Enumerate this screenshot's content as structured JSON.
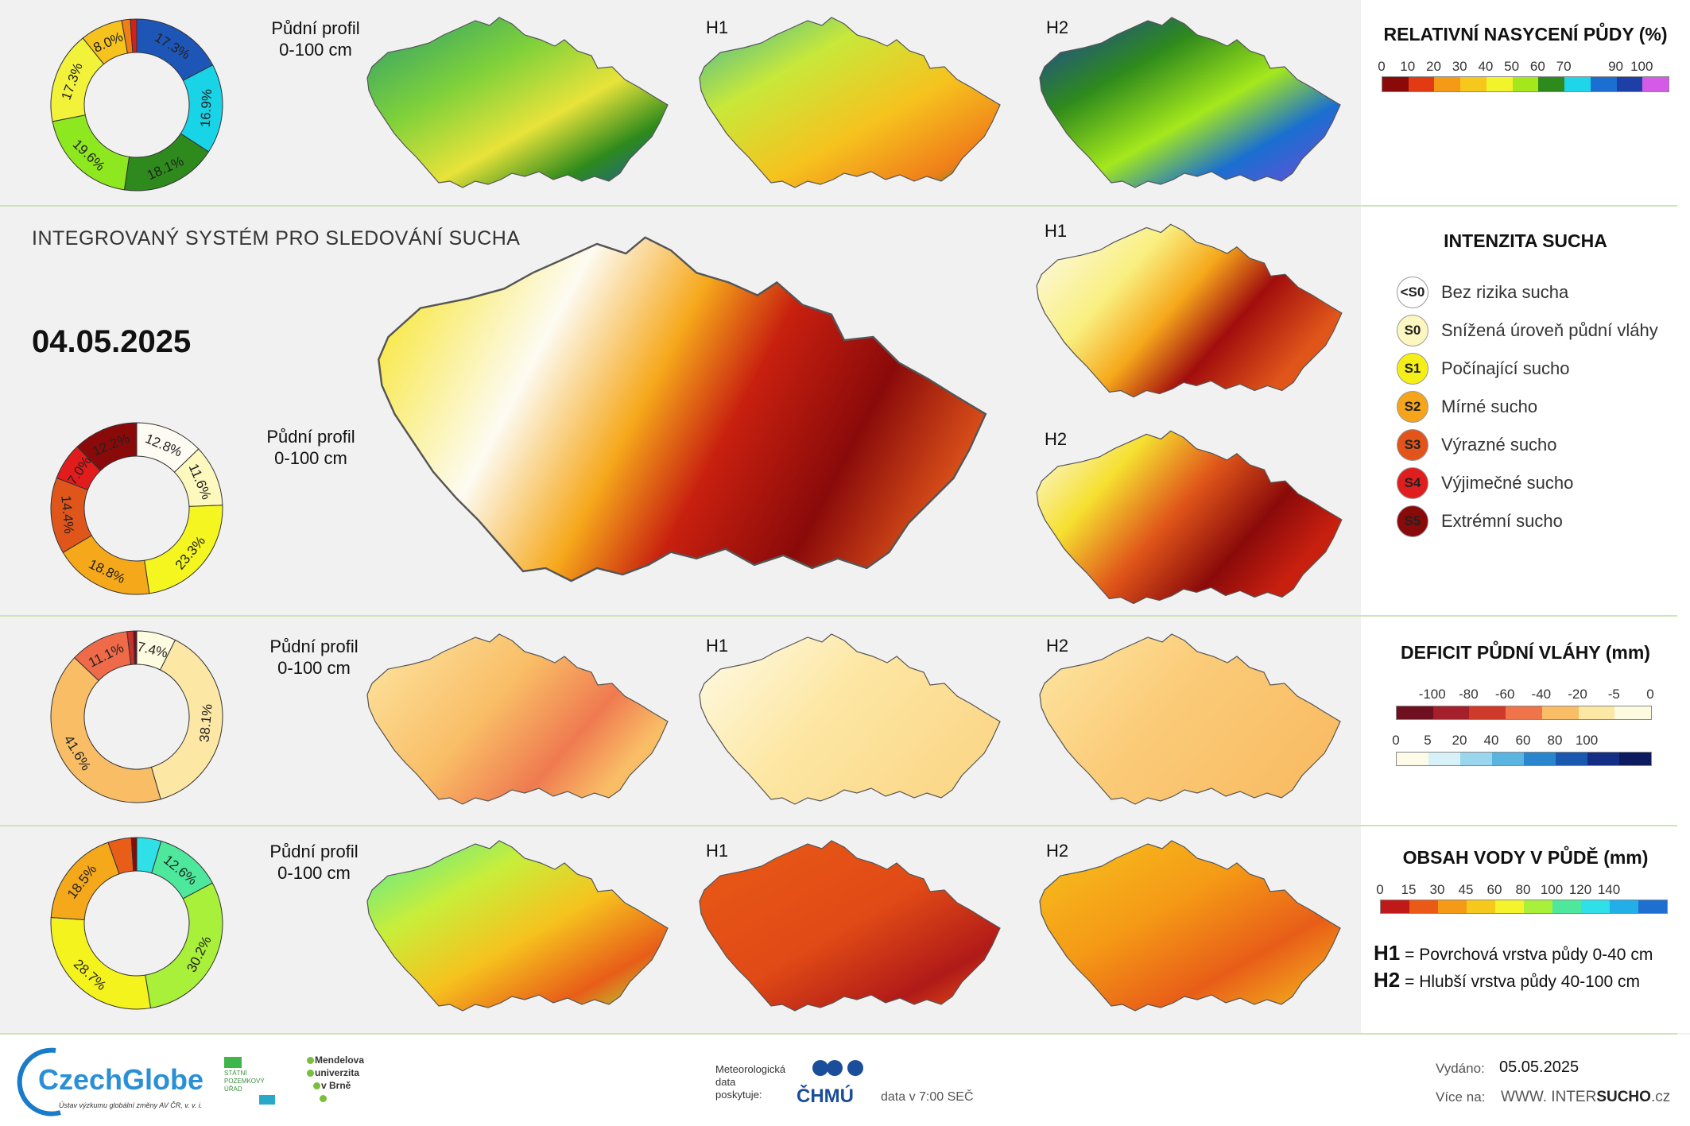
{
  "header": {
    "system_title": "INTEGROVANÝ SYSTÉM PRO SLEDOVÁNÍ SUCHA",
    "date": "04.05.2025"
  },
  "rows": {
    "saturation": {
      "profile_label_line1": "Půdní profil",
      "profile_label_line2": "0-100 cm",
      "h1_label": "H1",
      "h2_label": "H2",
      "donut": [
        {
          "label": "17.3%",
          "value": 17.3,
          "color": "#1e56b8"
        },
        {
          "label": "16.9%",
          "value": 16.9,
          "color": "#19d3e6"
        },
        {
          "label": "18.1%",
          "value": 18.1,
          "color": "#2e8a1c"
        },
        {
          "label": "19.6%",
          "value": 19.6,
          "color": "#8ee81f"
        },
        {
          "label": "17.3%",
          "value": 17.3,
          "color": "#f2f23a"
        },
        {
          "label": "8.0%",
          "value": 8.0,
          "color": "#f6c21e"
        },
        {
          "label": "",
          "value": 1.6,
          "color": "#f07f1a"
        },
        {
          "label": "",
          "value": 1.2,
          "color": "#d41f1f"
        }
      ]
    },
    "drought": {
      "profile_label_line1": "Půdní profil",
      "profile_label_line2": "0-100 cm",
      "h1_label": "H1",
      "h2_label": "H2",
      "donut": [
        {
          "label": "12.8%",
          "value": 12.8,
          "color": "#fdfbf2"
        },
        {
          "label": "11.6%",
          "value": 11.6,
          "color": "#fdf8bd"
        },
        {
          "label": "23.3%",
          "value": 23.3,
          "color": "#f5f520"
        },
        {
          "label": "18.8%",
          "value": 18.8,
          "color": "#f6a81b"
        },
        {
          "label": "14.4%",
          "value": 14.4,
          "color": "#e0561a"
        },
        {
          "label": "7.0%",
          "value": 7.0,
          "color": "#e21c1c"
        },
        {
          "label": "12.2%",
          "value": 12.2,
          "color": "#8a0a0a"
        }
      ]
    },
    "deficit": {
      "profile_label_line1": "Půdní profil",
      "profile_label_line2": "0-100 cm",
      "h1_label": "H1",
      "h2_label": "H2",
      "donut": [
        {
          "label": "7.4%",
          "value": 7.4,
          "color": "#fdfbe0"
        },
        {
          "label": "38.1%",
          "value": 38.1,
          "color": "#fde7a4"
        },
        {
          "label": "41.6%",
          "value": 41.6,
          "color": "#f9bd66"
        },
        {
          "label": "11.1%",
          "value": 11.1,
          "color": "#ef6a48"
        },
        {
          "label": "",
          "value": 1.2,
          "color": "#c9302a"
        },
        {
          "label": "",
          "value": 0.6,
          "color": "#6e1020"
        }
      ]
    },
    "water": {
      "profile_label_line1": "Půdní profil",
      "profile_label_line2": "0-100 cm",
      "h1_label": "H1",
      "h2_label": "H2",
      "donut": [
        {
          "label": "",
          "value": 4.6,
          "color": "#2fe0e8"
        },
        {
          "label": "12.6%",
          "value": 12.6,
          "color": "#4ee89c"
        },
        {
          "label": "30.2%",
          "value": 30.2,
          "color": "#a8f03a"
        },
        {
          "label": "28.7%",
          "value": 28.7,
          "color": "#f4f31e"
        },
        {
          "label": "18.5%",
          "value": 18.5,
          "color": "#f6a81b"
        },
        {
          "label": "",
          "value": 4.4,
          "color": "#e85d18"
        },
        {
          "label": "",
          "value": 1.0,
          "color": "#8a0a0a"
        }
      ]
    }
  },
  "legends": {
    "saturation": {
      "title": "RELATIVNÍ NASYCENÍ PŮDY (%)",
      "ticks": [
        "0",
        "10",
        "20",
        "30",
        "40",
        "50",
        "60",
        "70",
        "90",
        "100"
      ],
      "colors": [
        "#8a0a0a",
        "#e23b14",
        "#f59a16",
        "#f7c81c",
        "#f3f32c",
        "#a4e81c",
        "#2e8a1c",
        "#1fd5ea",
        "#1a6fd0",
        "#1e3fa8",
        "#d45ae8"
      ]
    },
    "drought": {
      "title": "INTENZITA SUCHA",
      "items": [
        {
          "code": "<S0",
          "label": "Bez rizika sucha",
          "color": "#ffffff",
          "text_color": "#222"
        },
        {
          "code": "S0",
          "label": "Snížená úroveň půdní vláhy",
          "color": "#fdf6c0",
          "text_color": "#222"
        },
        {
          "code": "S1",
          "label": "Počínající sucho",
          "color": "#f5ef18",
          "text_color": "#222"
        },
        {
          "code": "S2",
          "label": "Mírné sucho",
          "color": "#f6a51b",
          "text_color": "#222"
        },
        {
          "code": "S3",
          "label": "Výrazné sucho",
          "color": "#e2541a",
          "text_color": "#222"
        },
        {
          "code": "S4",
          "label": "Výjimečné sucho",
          "color": "#e01e1e",
          "text_color": "#222"
        },
        {
          "code": "S5",
          "label": "Extrémní sucho",
          "color": "#8a0a0a",
          "text_color": "#222"
        }
      ]
    },
    "deficit": {
      "title": "DEFICIT PŮDNÍ VLÁHY (mm)",
      "neg_ticks": [
        "-100",
        "-80",
        "-60",
        "-40",
        "-20",
        "-5",
        "0"
      ],
      "neg_colors": [
        "#6e1020",
        "#a4202a",
        "#d03a2a",
        "#f0744a",
        "#f9bd66",
        "#fde7a4",
        "#fdfbe0"
      ],
      "pos_ticks": [
        "0",
        "5",
        "20",
        "40",
        "60",
        "80",
        "100"
      ],
      "pos_colors": [
        "#fdfbe8",
        "#d8f0f8",
        "#9ad6ee",
        "#5ab4e0",
        "#2a86cc",
        "#1a58b0",
        "#142e86",
        "#0c1a5e"
      ]
    },
    "water": {
      "title": "OBSAH VODY V PŮDĚ (mm)",
      "ticks": [
        "0",
        "15",
        "30",
        "45",
        "60",
        "80",
        "100",
        "120",
        "140"
      ],
      "colors": [
        "#c01a18",
        "#ea5a16",
        "#f59a16",
        "#f6c81c",
        "#f4f32c",
        "#a8f03a",
        "#4ee89c",
        "#2fe0e8",
        "#22aee6",
        "#1e6fd0"
      ]
    },
    "layers": {
      "h1_code": "H1",
      "h1_text": "= Povrchová vrstva půdy 0-40 cm",
      "h2_code": "H2",
      "h2_text": "= Hlubší vrstva půdy 40-100 cm"
    }
  },
  "footer": {
    "czechglobe": "CzechGlobe",
    "czechglobe_sub": "Ústav výzkumu globální změny AV ČR, v. v. i.",
    "spu_line1": "STÁTNÍ",
    "spu_line2": "POZEMKOVÝ",
    "spu_line3": "ÚŘAD",
    "mendel_line1": "Mendelova",
    "mendel_line2": "univerzita",
    "mendel_line3": "v Brně",
    "meteo_line1": "Meteorologická",
    "meteo_line2": "data",
    "meteo_line3": "poskytuje:",
    "chmu": "ČHMÚ",
    "data_time": "data v 7:00 SEČ",
    "issued_label": "Vydáno:",
    "issued_date": "05.05.2025",
    "more_label": "Více na:",
    "url_www": "WWW. INTER",
    "url_sucho": "SUCHO",
    "url_cz": ".cz"
  }
}
